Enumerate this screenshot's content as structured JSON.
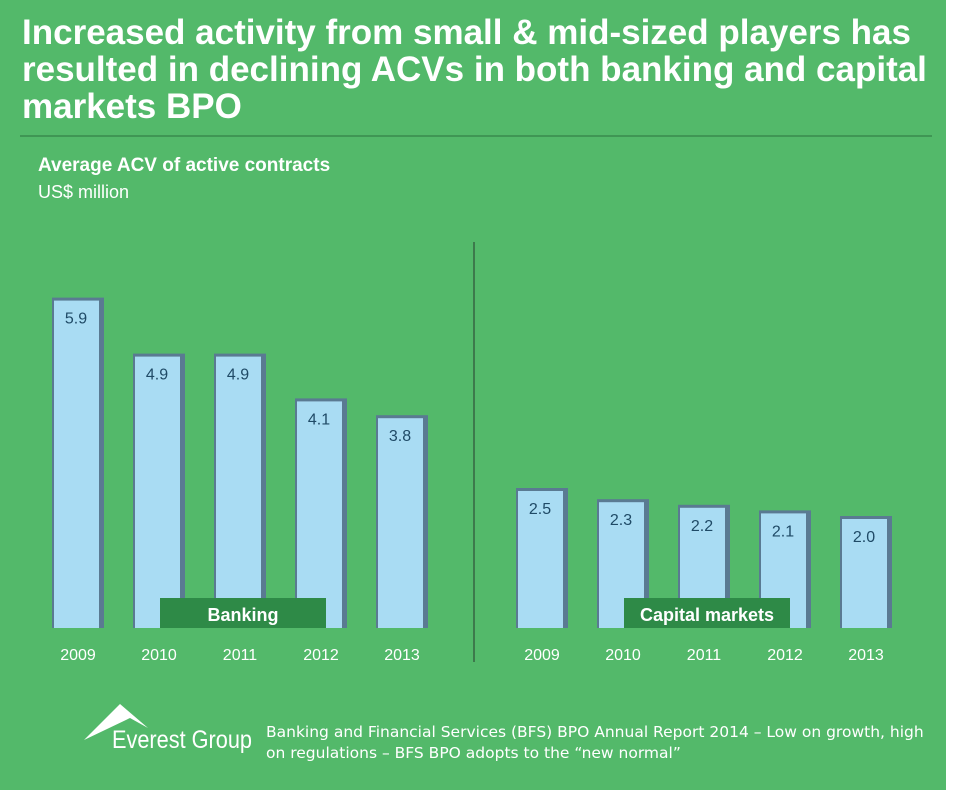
{
  "title": "Increased activity from small & mid-sized players has resulted in declining ACVs in both banking and capital markets BPO",
  "chart_data": {
    "type": "bar",
    "title": "Average ACV of active contracts",
    "unit": "US$ million",
    "ylim": [
      0,
      6.0
    ],
    "grid": false,
    "panels": [
      {
        "name": "Banking",
        "categories": [
          "2009",
          "2010",
          "2011",
          "2012",
          "2013"
        ],
        "values": [
          5.9,
          4.9,
          4.9,
          4.1,
          3.8
        ],
        "labels": [
          "5.9",
          "4.9",
          "4.9",
          "4.1",
          "3.8"
        ]
      },
      {
        "name": "Capital markets",
        "categories": [
          "2009",
          "2010",
          "2011",
          "2012",
          "2013"
        ],
        "values": [
          2.5,
          2.3,
          2.2,
          2.1,
          2.0
        ],
        "labels": [
          "2.5",
          "2.3",
          "2.2",
          "2.1",
          "2.0"
        ]
      }
    ],
    "colors": {
      "bar": "#a9dcf3",
      "bar_edge": "#5a7a92",
      "value_text": "#1f4a66",
      "panel_label_bg": "#2e8a47",
      "divider": "#3d7a4c"
    }
  },
  "footer": {
    "logo_text": "Everest Group",
    "source": "Banking and Financial Services (BFS) BPO Annual Report 2014 – Low on growth, high on regulations – BFS BPO adopts to the “new normal”"
  }
}
